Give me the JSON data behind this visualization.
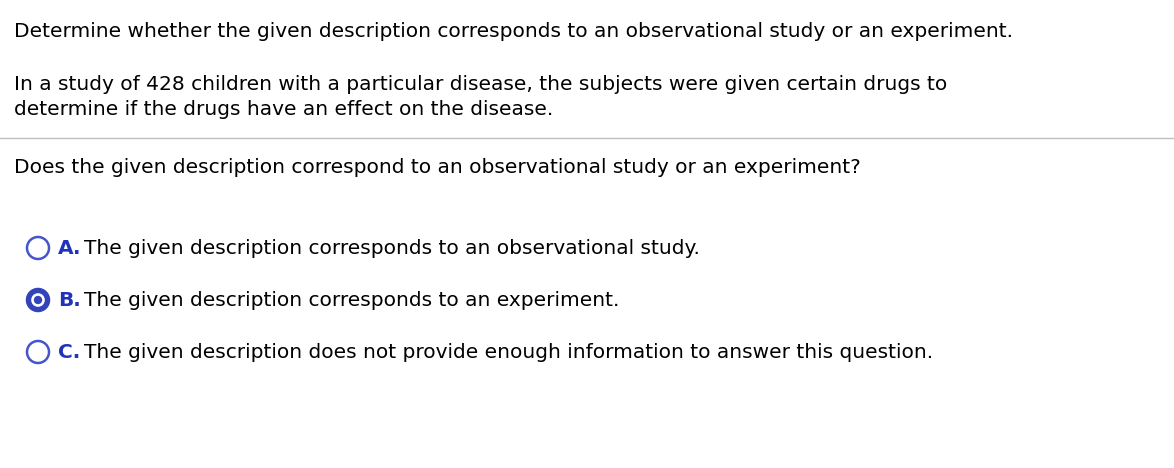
{
  "bg_color": "#ffffff",
  "content_bg": "#ffffff",
  "title_line1": "Determine whether the given description corresponds to an observational study or an experiment.",
  "body_line1": "In a study of 428 children with a particular disease, the subjects were given certain drugs to",
  "body_line2": "determine if the drugs have an effect on the disease.",
  "question": "Does the given description correspond to an observational study or an experiment?",
  "option_a_label": "A.",
  "option_a_text": "The given description corresponds to an observational study.",
  "option_b_label": "B.",
  "option_b_text": "The given description corresponds to an experiment.",
  "option_c_label": "C.",
  "option_c_text": "The given description does not provide enough information to answer this question.",
  "font_size_main": 14.5,
  "font_size_options": 14.5,
  "text_color": "#000000",
  "label_color": "#2233bb",
  "circle_edge_empty": "#4455cc",
  "circle_edge_selected": "#3344bb",
  "circle_fill_selected": "#3344bb",
  "divider_color": "#c0c0c0",
  "selected_option": "B",
  "fig_width": 11.74,
  "fig_height": 4.68,
  "dpi": 100
}
